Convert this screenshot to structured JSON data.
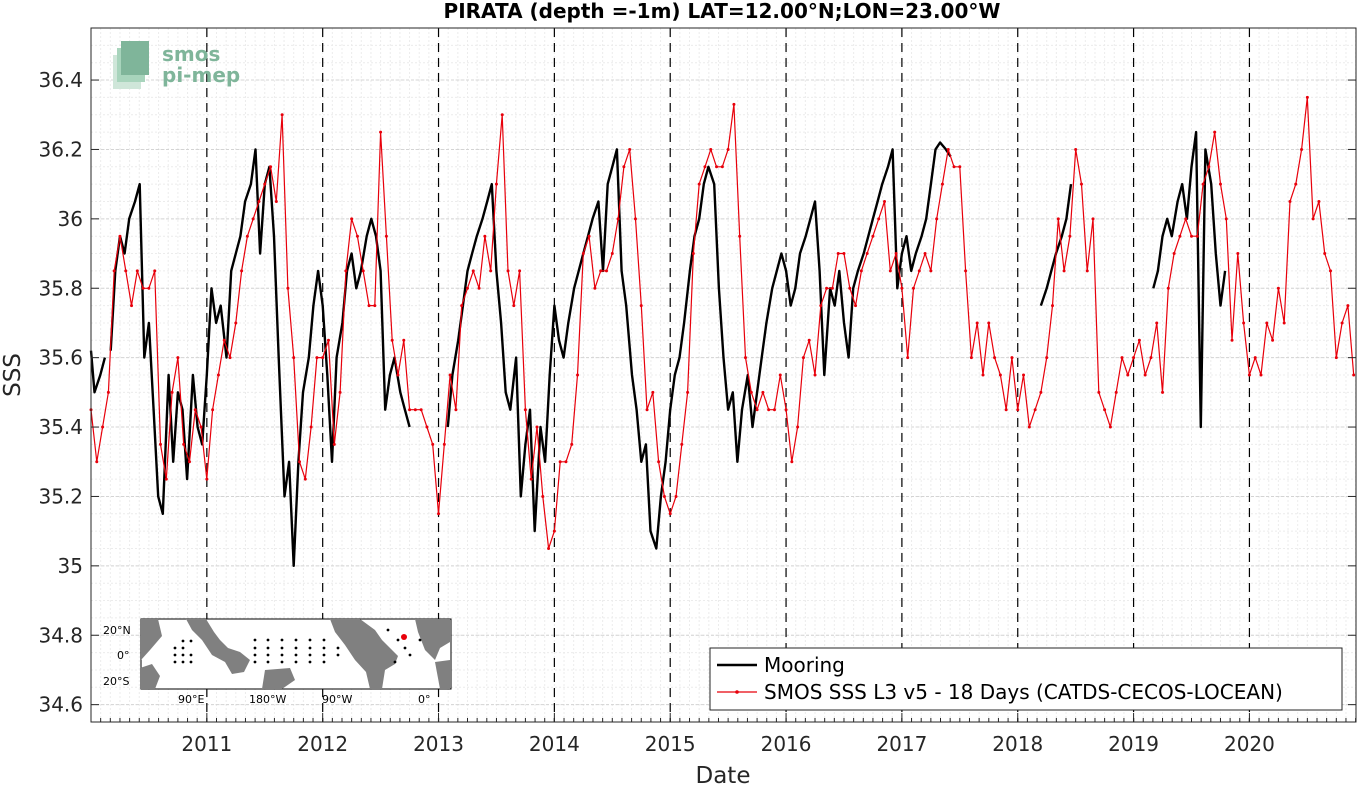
{
  "logo": {
    "line1": "smos",
    "line2": "pi-mep"
  },
  "chart_data": {
    "type": "line",
    "title": "PIRATA (depth =-1m) LAT=12.00°N;LON=23.00°W",
    "xlabel": "Date",
    "ylabel": "SSS",
    "xlim": [
      2010.0,
      2020.92
    ],
    "ylim": [
      34.55,
      36.55
    ],
    "yticks": [
      34.6,
      34.8,
      35,
      35.2,
      35.4,
      35.6,
      35.8,
      36,
      36.2,
      36.4
    ],
    "ytick_labels": [
      "34.6",
      "34.8",
      "35",
      "35.2",
      "35.4",
      "35.6",
      "35.8",
      "36",
      "36.2",
      "36.4"
    ],
    "xticks": [
      2011,
      2012,
      2013,
      2014,
      2015,
      2016,
      2017,
      2018,
      2019,
      2020
    ],
    "xtick_labels": [
      "2011",
      "2012",
      "2013",
      "2014",
      "2015",
      "2016",
      "2017",
      "2018",
      "2019",
      "2020"
    ],
    "grid": true,
    "legend_position": "bottom-right",
    "series": [
      {
        "name": "Mooring",
        "color": "#000000",
        "segments": [
          {
            "x": [
              2010.0,
              2010.03,
              2010.08,
              2010.12
            ],
            "y": [
              35.62,
              35.5,
              35.55,
              35.6
            ]
          },
          {
            "x": [
              2010.17,
              2010.21,
              2010.25,
              2010.29,
              2010.33,
              2010.38,
              2010.42,
              2010.46,
              2010.5,
              2010.54,
              2010.58,
              2010.62,
              2010.67,
              2010.71,
              2010.75,
              2010.79,
              2010.83,
              2010.88,
              2010.92,
              2010.96,
              2011.0,
              2011.04,
              2011.08,
              2011.12,
              2011.17,
              2011.21,
              2011.25,
              2011.29,
              2011.33,
              2011.38,
              2011.42,
              2011.46,
              2011.5,
              2011.54,
              2011.58,
              2011.62,
              2011.67,
              2011.71,
              2011.75,
              2011.79,
              2011.83,
              2011.88,
              2011.92,
              2011.96,
              2012.0,
              2012.04,
              2012.08,
              2012.12,
              2012.17,
              2012.21,
              2012.25,
              2012.29,
              2012.33,
              2012.38,
              2012.42,
              2012.46,
              2012.5,
              2012.54,
              2012.58,
              2012.62,
              2012.67,
              2012.71,
              2012.75
            ],
            "y": [
              35.62,
              35.85,
              35.95,
              35.9,
              36.0,
              36.05,
              36.1,
              35.6,
              35.7,
              35.45,
              35.2,
              35.15,
              35.55,
              35.3,
              35.5,
              35.45,
              35.25,
              35.55,
              35.4,
              35.35,
              35.55,
              35.8,
              35.7,
              35.75,
              35.6,
              35.85,
              35.9,
              35.95,
              36.05,
              36.1,
              36.2,
              35.9,
              36.1,
              36.15,
              35.95,
              35.6,
              35.2,
              35.3,
              35.0,
              35.3,
              35.5,
              35.6,
              35.75,
              35.85,
              35.75,
              35.55,
              35.3,
              35.6,
              35.7,
              35.85,
              35.9,
              35.8,
              35.85,
              35.95,
              36.0,
              35.95,
              35.85,
              35.45,
              35.55,
              35.6,
              35.5,
              35.45,
              35.4
            ]
          },
          {
            "x": [
              2013.08,
              2013.12,
              2013.17,
              2013.21,
              2013.25,
              2013.29,
              2013.33,
              2013.38,
              2013.42,
              2013.46,
              2013.5,
              2013.54,
              2013.58,
              2013.62,
              2013.67,
              2013.71,
              2013.75,
              2013.79,
              2013.83,
              2013.88,
              2013.92,
              2013.96,
              2014.0,
              2014.04,
              2014.08,
              2014.12,
              2014.17,
              2014.21,
              2014.25,
              2014.29,
              2014.33,
              2014.38,
              2014.42,
              2014.46,
              2014.5,
              2014.54,
              2014.58,
              2014.62,
              2014.67,
              2014.71,
              2014.75,
              2014.79,
              2014.83,
              2014.88,
              2014.92,
              2014.96,
              2015.0,
              2015.04,
              2015.08,
              2015.12,
              2015.17,
              2015.21,
              2015.25,
              2015.29,
              2015.33,
              2015.38,
              2015.42,
              2015.46,
              2015.5,
              2015.54,
              2015.58,
              2015.62,
              2015.67,
              2015.71,
              2015.75,
              2015.79,
              2015.83,
              2015.88,
              2015.92,
              2015.96,
              2016.0,
              2016.04,
              2016.08,
              2016.12,
              2016.17,
              2016.21,
              2016.25,
              2016.29,
              2016.33,
              2016.38,
              2016.42,
              2016.46,
              2016.5,
              2016.54,
              2016.58,
              2016.62,
              2016.67,
              2016.71,
              2016.75,
              2016.79,
              2016.83,
              2016.88,
              2016.92,
              2016.96,
              2017.0,
              2017.04,
              2017.08,
              2017.12,
              2017.17,
              2017.21,
              2017.25,
              2017.29,
              2017.33,
              2017.38,
              2017.42
            ],
            "y": [
              35.4,
              35.55,
              35.65,
              35.75,
              35.85,
              35.9,
              35.95,
              36.0,
              36.05,
              36.1,
              35.85,
              35.7,
              35.5,
              35.45,
              35.6,
              35.2,
              35.35,
              35.45,
              35.1,
              35.4,
              35.3,
              35.55,
              35.75,
              35.65,
              35.6,
              35.7,
              35.8,
              35.85,
              35.9,
              35.95,
              36.0,
              36.05,
              35.85,
              36.1,
              36.15,
              36.2,
              35.85,
              35.75,
              35.55,
              35.45,
              35.3,
              35.35,
              35.1,
              35.05,
              35.2,
              35.3,
              35.45,
              35.55,
              35.6,
              35.7,
              35.85,
              35.95,
              36.0,
              36.1,
              36.15,
              36.1,
              35.8,
              35.6,
              35.45,
              35.5,
              35.3,
              35.45,
              35.55,
              35.4,
              35.5,
              35.6,
              35.7,
              35.8,
              35.85,
              35.9,
              35.85,
              35.75,
              35.8,
              35.9,
              35.95,
              36.0,
              36.05,
              35.85,
              35.55,
              35.8,
              35.75,
              35.85,
              35.7,
              35.6,
              35.8,
              35.85,
              35.9,
              35.95,
              36.0,
              36.05,
              36.1,
              36.15,
              36.2,
              35.8,
              35.9,
              35.95,
              35.85,
              35.9,
              35.95,
              36.0,
              36.1,
              36.2,
              36.22,
              36.2,
              36.18
            ]
          },
          {
            "x": [
              2018.2,
              2018.25,
              2018.29,
              2018.33,
              2018.38,
              2018.42,
              2018.46
            ],
            "y": [
              35.75,
              35.8,
              35.85,
              35.9,
              35.95,
              36.0,
              36.1
            ]
          },
          {
            "x": [
              2019.17,
              2019.21,
              2019.25,
              2019.29,
              2019.33,
              2019.38,
              2019.42,
              2019.46,
              2019.5,
              2019.54,
              2019.58,
              2019.62,
              2019.67,
              2019.71,
              2019.75,
              2019.79
            ],
            "y": [
              35.8,
              35.85,
              35.95,
              36.0,
              35.95,
              36.05,
              36.1,
              36.0,
              36.15,
              36.25,
              35.4,
              36.2,
              36.1,
              35.9,
              35.75,
              35.85
            ]
          }
        ]
      },
      {
        "name": "SMOS SSS L3 v5 - 18 Days (CATDS-CECOS-LOCEAN)",
        "color": "#e8000b",
        "x": [
          2010.0,
          2010.05,
          2010.1,
          2010.15,
          2010.2,
          2010.25,
          2010.3,
          2010.35,
          2010.4,
          2010.45,
          2010.5,
          2010.55,
          2010.6,
          2010.65,
          2010.7,
          2010.75,
          2010.8,
          2010.85,
          2010.9,
          2010.95,
          2011.0,
          2011.05,
          2011.1,
          2011.15,
          2011.2,
          2011.25,
          2011.3,
          2011.35,
          2011.4,
          2011.45,
          2011.5,
          2011.55,
          2011.6,
          2011.65,
          2011.7,
          2011.75,
          2011.8,
          2011.85,
          2011.9,
          2011.95,
          2012.0,
          2012.05,
          2012.1,
          2012.15,
          2012.2,
          2012.25,
          2012.3,
          2012.35,
          2012.4,
          2012.45,
          2012.5,
          2012.55,
          2012.6,
          2012.65,
          2012.7,
          2012.75,
          2012.8,
          2012.85,
          2012.9,
          2012.95,
          2013.0,
          2013.05,
          2013.1,
          2013.15,
          2013.2,
          2013.25,
          2013.3,
          2013.35,
          2013.4,
          2013.45,
          2013.5,
          2013.55,
          2013.6,
          2013.65,
          2013.7,
          2013.75,
          2013.8,
          2013.85,
          2013.9,
          2013.95,
          2014.0,
          2014.05,
          2014.1,
          2014.15,
          2014.2,
          2014.25,
          2014.3,
          2014.35,
          2014.4,
          2014.45,
          2014.5,
          2014.55,
          2014.6,
          2014.65,
          2014.7,
          2014.75,
          2014.8,
          2014.85,
          2014.9,
          2014.95,
          2015.0,
          2015.05,
          2015.1,
          2015.15,
          2015.2,
          2015.25,
          2015.3,
          2015.35,
          2015.4,
          2015.45,
          2015.5,
          2015.55,
          2015.6,
          2015.65,
          2015.7,
          2015.75,
          2015.8,
          2015.85,
          2015.9,
          2015.95,
          2016.0,
          2016.05,
          2016.1,
          2016.15,
          2016.2,
          2016.25,
          2016.3,
          2016.35,
          2016.4,
          2016.45,
          2016.5,
          2016.55,
          2016.6,
          2016.65,
          2016.7,
          2016.75,
          2016.8,
          2016.85,
          2016.9,
          2016.95,
          2017.0,
          2017.05,
          2017.1,
          2017.15,
          2017.2,
          2017.25,
          2017.3,
          2017.35,
          2017.4,
          2017.45,
          2017.5,
          2017.55,
          2017.6,
          2017.65,
          2017.7,
          2017.75,
          2017.8,
          2017.85,
          2017.9,
          2017.95,
          2018.0,
          2018.05,
          2018.1,
          2018.15,
          2018.2,
          2018.25,
          2018.3,
          2018.35,
          2018.4,
          2018.45,
          2018.5,
          2018.55,
          2018.6,
          2018.65,
          2018.7,
          2018.75,
          2018.8,
          2018.85,
          2018.9,
          2018.95,
          2019.0,
          2019.05,
          2019.1,
          2019.15,
          2019.2,
          2019.25,
          2019.3,
          2019.35,
          2019.4,
          2019.45,
          2019.5,
          2019.55,
          2019.6,
          2019.65,
          2019.7,
          2019.75,
          2019.8,
          2019.85,
          2019.9,
          2019.95,
          2020.0,
          2020.05,
          2020.1,
          2020.15,
          2020.2,
          2020.25,
          2020.3,
          2020.35,
          2020.4,
          2020.45,
          2020.5,
          2020.55,
          2020.6,
          2020.65,
          2020.7,
          2020.75,
          2020.8,
          2020.85,
          2020.9
        ],
        "y": [
          35.45,
          35.3,
          35.4,
          35.5,
          35.85,
          35.95,
          35.85,
          35.75,
          35.85,
          35.8,
          35.8,
          35.85,
          35.35,
          35.25,
          35.5,
          35.6,
          35.35,
          35.3,
          35.45,
          35.4,
          35.25,
          35.45,
          35.55,
          35.65,
          35.6,
          35.7,
          35.85,
          35.95,
          36.0,
          36.05,
          36.1,
          36.15,
          36.05,
          36.3,
          35.8,
          35.6,
          35.3,
          35.25,
          35.4,
          35.6,
          35.6,
          35.65,
          35.35,
          35.5,
          35.85,
          36.0,
          35.95,
          35.85,
          35.75,
          35.75,
          36.25,
          35.95,
          35.65,
          35.55,
          35.65,
          35.45,
          35.45,
          35.45,
          35.4,
          35.35,
          35.15,
          35.35,
          35.55,
          35.45,
          35.75,
          35.8,
          35.85,
          35.8,
          35.95,
          35.85,
          36.1,
          36.3,
          35.85,
          35.75,
          35.85,
          35.45,
          35.25,
          35.4,
          35.2,
          35.05,
          35.1,
          35.3,
          35.3,
          35.35,
          35.55,
          35.9,
          35.95,
          35.8,
          35.85,
          35.85,
          35.9,
          36.0,
          36.15,
          36.2,
          36.0,
          35.75,
          35.45,
          35.5,
          35.3,
          35.2,
          35.15,
          35.2,
          35.35,
          35.5,
          35.9,
          36.1,
          36.15,
          36.2,
          36.15,
          36.15,
          36.2,
          36.33,
          35.95,
          35.6,
          35.5,
          35.45,
          35.5,
          35.45,
          35.45,
          35.55,
          35.45,
          35.3,
          35.4,
          35.6,
          35.65,
          35.55,
          35.75,
          35.8,
          35.8,
          35.9,
          35.9,
          35.8,
          35.75,
          35.85,
          35.9,
          35.95,
          36.0,
          36.05,
          35.85,
          35.9,
          35.8,
          35.6,
          35.8,
          35.85,
          35.9,
          35.85,
          36.0,
          36.1,
          36.2,
          36.15,
          36.15,
          35.85,
          35.6,
          35.7,
          35.55,
          35.7,
          35.6,
          35.55,
          35.45,
          35.6,
          35.45,
          35.55,
          35.4,
          35.45,
          35.5,
          35.6,
          35.75,
          36.0,
          35.85,
          35.95,
          36.2,
          36.1,
          35.85,
          36.0,
          35.5,
          35.45,
          35.4,
          35.5,
          35.6,
          35.55,
          35.6,
          35.65,
          35.55,
          35.6,
          35.7,
          35.5,
          35.8,
          35.9,
          35.95,
          36.0,
          35.95,
          35.95,
          36.1,
          36.15,
          36.25,
          36.1,
          36.0,
          35.65,
          35.9,
          35.7,
          35.55,
          35.6,
          35.55,
          35.7,
          35.65,
          35.8,
          35.7,
          36.05,
          36.1,
          36.2,
          36.35,
          36.0,
          36.05,
          35.9,
          35.85,
          35.6,
          35.7,
          35.75,
          35.55
        ]
      }
    ]
  },
  "inset_map": {
    "lat_labels": [
      "20°N",
      "0°",
      "20°S"
    ],
    "lon_labels": [
      "90°E",
      "180°W",
      "90°W",
      "0°"
    ]
  }
}
